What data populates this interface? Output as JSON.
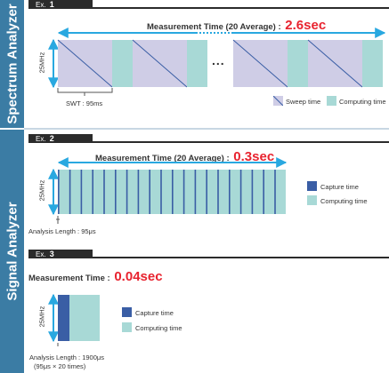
{
  "colors": {
    "sidebar": "#3b7ca4",
    "sweep": "#cfcde6",
    "computing": "#a8d9d6",
    "capture": "#3a5ea5",
    "arrow": "#29a8e0",
    "accent": "#e8232f"
  },
  "section1": {
    "sidebar": "Spectrum Analyzer",
    "tab_prefix": "Ex.",
    "tab_num": "1",
    "title": "Measurement Time (20 Average) :",
    "value": "2.6sec",
    "y_label": "25MHz",
    "ellipsis": "...",
    "swt": "SWT : 95ms",
    "legend": {
      "sweep": "Sweep time",
      "computing": "Computing time"
    }
  },
  "section2": {
    "sidebar": "Signal Analyzer",
    "tab_prefix": "Ex.",
    "tab_num": "2",
    "title": "Measurement Time (20 Average) :",
    "value": "0.3sec",
    "y_label": "25MHz",
    "analysis": "Analysis Length : 95μs",
    "legend": {
      "capture": "Capture time",
      "computing": "Computing time"
    }
  },
  "section3": {
    "tab_prefix": "Ex.",
    "tab_num": "3",
    "title": "Measurement Time :",
    "value": "0.04sec",
    "y_label": "25MHz",
    "analysis_line1": "Analysis Length : 1900μs",
    "analysis_line2": "(95μs × 20 times)",
    "legend": {
      "capture": "Capture time",
      "computing": "Computing time"
    }
  }
}
